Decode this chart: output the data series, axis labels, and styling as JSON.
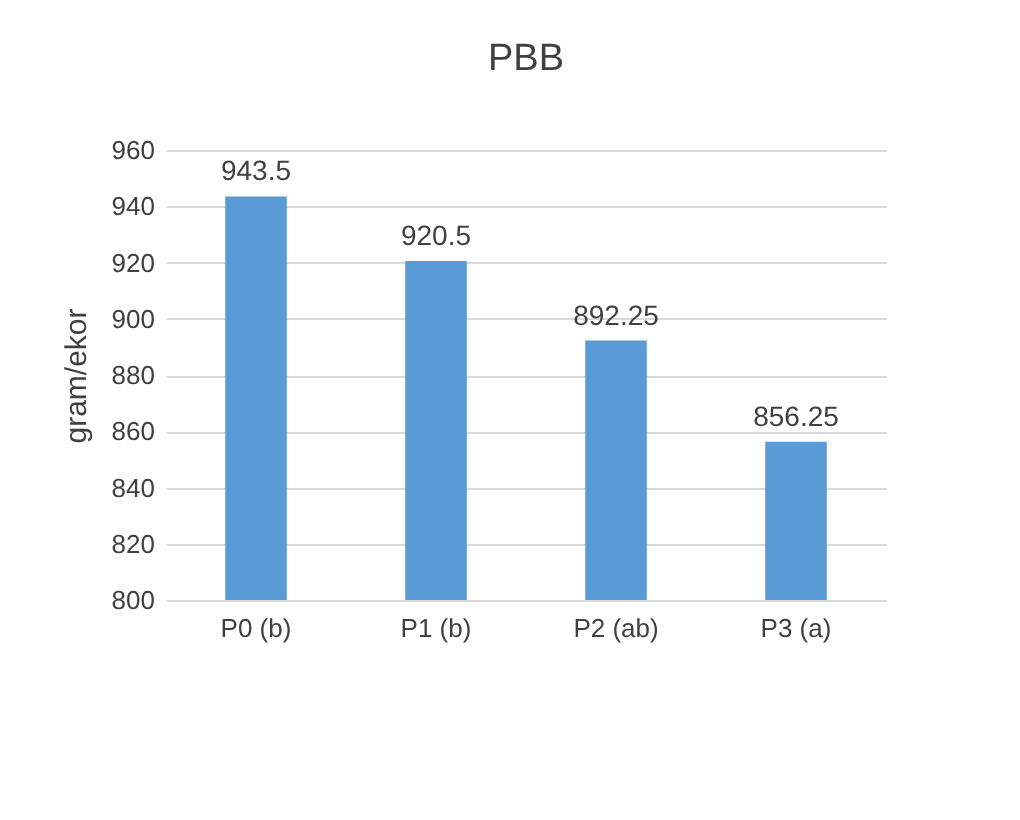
{
  "chart_data": {
    "type": "bar",
    "title": "PBB",
    "ylabel": "gram/ekor",
    "categories": [
      "P0 (b)",
      "P1 (b)",
      "P2 (ab)",
      "P3 (a)"
    ],
    "values": [
      943.5,
      920.5,
      892.25,
      856.25
    ],
    "color": "#5b9bd5",
    "ylim": [
      800,
      960
    ],
    "yticks": [
      800,
      820,
      840,
      860,
      880,
      900,
      920,
      940,
      960
    ],
    "grid": "y",
    "data_labels": true
  }
}
